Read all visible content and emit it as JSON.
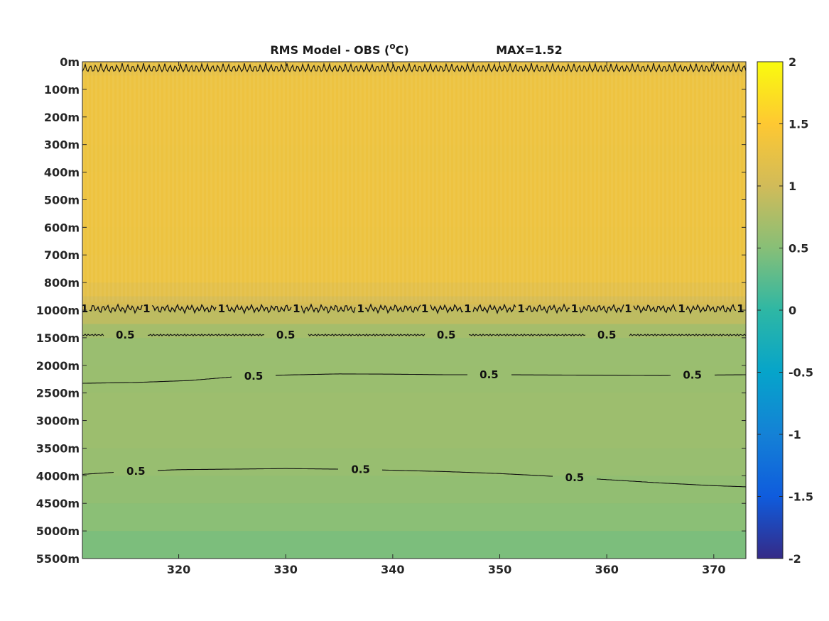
{
  "chart_data": {
    "type": "heatmap",
    "title": {
      "main": "RMS Model - OBS (",
      "unit_sup": "o",
      "unit_end": "C)",
      "max_label": "MAX=1.52"
    },
    "xlabel": "",
    "ylabel": "",
    "xlim": [
      311,
      373
    ],
    "x_ticks": [
      320,
      330,
      340,
      350,
      360,
      370
    ],
    "y_tick_labels": [
      "0m",
      "100m",
      "200m",
      "300m",
      "400m",
      "500m",
      "600m",
      "700m",
      "800m",
      "1000m",
      "1500m",
      "2000m",
      "2500m",
      "3000m",
      "3500m",
      "4000m",
      "4500m",
      "5000m",
      "5500m"
    ],
    "color_scale": {
      "range": [
        -2,
        2
      ],
      "ticks": [
        2,
        1.5,
        1,
        0.5,
        0,
        -0.5,
        -1,
        -1.5,
        -2
      ],
      "colormap": "parula",
      "stops": [
        "#352a87",
        "#0f5cdd",
        "#1481d6",
        "#06a4ca",
        "#2eb7a4",
        "#87bf77",
        "#d1bb59",
        "#fec832",
        "#f9fb0e"
      ]
    },
    "field_profile": {
      "depth_index": [
        0,
        0.5,
        1,
        2,
        3,
        4,
        5,
        6,
        7,
        8,
        8.5,
        8.8,
        9,
        9.5,
        10,
        11,
        12,
        13,
        14,
        15,
        16,
        17,
        18
      ],
      "rms": [
        1.18,
        1.3,
        1.32,
        1.33,
        1.31,
        1.32,
        1.32,
        1.32,
        1.31,
        1.28,
        1.14,
        1.03,
        0.95,
        0.78,
        0.63,
        0.62,
        0.64,
        0.66,
        0.63,
        0.6,
        0.55,
        0.5,
        0.38
      ]
    },
    "contours": [
      {
        "level": "1",
        "depth_index": 0.05,
        "labels_x": []
      },
      {
        "level": "1",
        "depth_index": 8.95,
        "labels_x": [
          311.2,
          317,
          324,
          331,
          337,
          343,
          347,
          352,
          357,
          362,
          367,
          372.5
        ]
      },
      {
        "level": "0.5",
        "depth_index": 9.9,
        "labels_x": [
          315,
          330,
          345,
          360
        ]
      },
      {
        "level": "0.5",
        "x": [
          311,
          316,
          321,
          325,
          330,
          335,
          340,
          345,
          350,
          355,
          360,
          365,
          370,
          373
        ],
        "depth_index": [
          11.65,
          11.62,
          11.55,
          11.42,
          11.35,
          11.31,
          11.32,
          11.34,
          11.34,
          11.35,
          11.36,
          11.37,
          11.35,
          11.34
        ],
        "labels_x": [
          327,
          349,
          368
        ]
      },
      {
        "level": "0.5",
        "x": [
          311,
          315,
          320,
          325,
          330,
          335,
          340,
          345,
          350,
          355,
          360,
          365,
          370,
          373
        ],
        "depth_index": [
          14.95,
          14.85,
          14.78,
          14.76,
          14.74,
          14.76,
          14.8,
          14.85,
          14.92,
          15.02,
          15.14,
          15.26,
          15.36,
          15.4
        ],
        "labels_x": [
          316,
          337,
          357
        ]
      }
    ]
  }
}
